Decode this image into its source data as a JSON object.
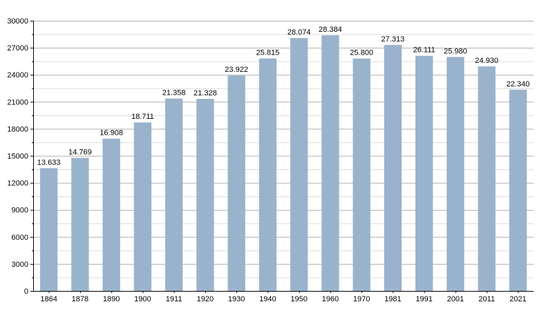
{
  "chart_data": {
    "type": "bar",
    "categories": [
      "1864",
      "1878",
      "1890",
      "1900",
      "1911",
      "1920",
      "1930",
      "1940",
      "1950",
      "1960",
      "1970",
      "1981",
      "1991",
      "2001",
      "2011",
      "2021"
    ],
    "values": [
      13633,
      14769,
      16908,
      18711,
      21358,
      21328,
      23922,
      25815,
      28074,
      28384,
      25800,
      27313,
      26111,
      25980,
      24930,
      22340
    ],
    "value_labels": [
      "13.633",
      "14.769",
      "16.908",
      "18.711",
      "21.358",
      "21.328",
      "23.922",
      "25.815",
      "28.074",
      "28.384",
      "25.800",
      "27.313",
      "26.111",
      "25.980",
      "24.930",
      "22.340"
    ],
    "y_ticks": [
      "0",
      "3000",
      "6000",
      "9000",
      "12000",
      "15000",
      "18000",
      "21000",
      "24000",
      "27000",
      "30000"
    ],
    "ylim": [
      0,
      30000
    ],
    "title": "",
    "xlabel": "",
    "ylabel": "",
    "grid": true,
    "bar_color": "#9ab3cc",
    "grid_color": "#b0b0b0",
    "minor_grid_color": "#dcdcdc"
  }
}
